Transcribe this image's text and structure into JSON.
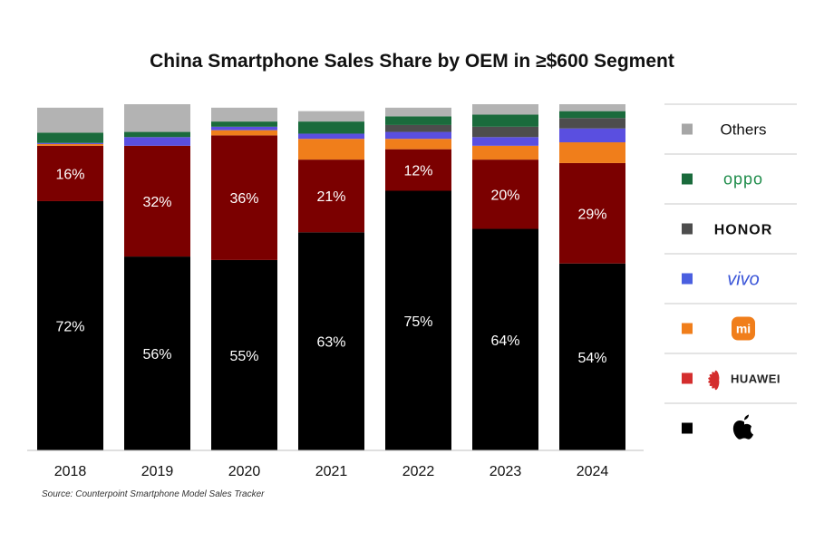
{
  "chart_data": {
    "type": "bar",
    "stacked": true,
    "title": "China Smartphone Sales Share by OEM in ≥$600 Segment",
    "xlabel": "",
    "ylabel": "",
    "ylim": [
      0,
      100
    ],
    "categories": [
      "2018",
      "2019",
      "2020",
      "2021",
      "2022",
      "2023",
      "2024"
    ],
    "series": [
      {
        "name": "Apple",
        "color": "#000000",
        "values": [
          72,
          56,
          55,
          63,
          75,
          64,
          54
        ],
        "labels": [
          "72%",
          "56%",
          "55%",
          "63%",
          "75%",
          "64%",
          "54%"
        ]
      },
      {
        "name": "HUAWEI",
        "color": "#7b0000",
        "values": [
          16,
          32,
          36,
          21,
          12,
          20,
          29
        ],
        "labels": [
          "16%",
          "32%",
          "36%",
          "21%",
          "12%",
          "20%",
          "29%"
        ]
      },
      {
        "name": "Xiaomi",
        "color": "#f07e1b",
        "values": [
          0.5,
          0,
          1.5,
          6,
          3,
          4,
          6
        ],
        "labels": []
      },
      {
        "name": "vivo",
        "color": "#5a4fe0",
        "values": [
          0.3,
          2.5,
          1,
          1.5,
          2,
          2.5,
          4
        ],
        "labels": []
      },
      {
        "name": "HONOR",
        "color": "#4d4d4d",
        "values": [
          0,
          0,
          0,
          0,
          2,
          3,
          3
        ],
        "labels": []
      },
      {
        "name": "OPPO",
        "color": "#1a6b3c",
        "values": [
          3,
          1.5,
          1.5,
          3.5,
          2.5,
          3.5,
          2
        ],
        "labels": []
      },
      {
        "name": "Others",
        "color": "#b3b3b3",
        "values": [
          7.2,
          8,
          4,
          3,
          2.5,
          3,
          2
        ],
        "labels": []
      }
    ],
    "legend": {
      "placement": "right",
      "items": [
        {
          "key": "Others",
          "label": "Others",
          "color": "#a6a6a6",
          "style": "text"
        },
        {
          "key": "OPPO",
          "label": "oppo",
          "color": "#1a6b3c",
          "style": "oppo"
        },
        {
          "key": "HONOR",
          "label": "HONOR",
          "color": "#4d4d4d",
          "style": "honor"
        },
        {
          "key": "vivo",
          "label": "vivo",
          "color": "#4a5fe0",
          "style": "vivo"
        },
        {
          "key": "Xiaomi",
          "label": "mi",
          "color": "#f07e1b",
          "style": "xiaomi-logo"
        },
        {
          "key": "HUAWEI",
          "label": "HUAWEI",
          "color": "#d42e2e",
          "style": "huawei"
        },
        {
          "key": "Apple",
          "label": "",
          "color": "#000000",
          "style": "apple-logo"
        }
      ]
    },
    "source": "Source: Counterpoint Smartphone Model Sales Tracker"
  }
}
